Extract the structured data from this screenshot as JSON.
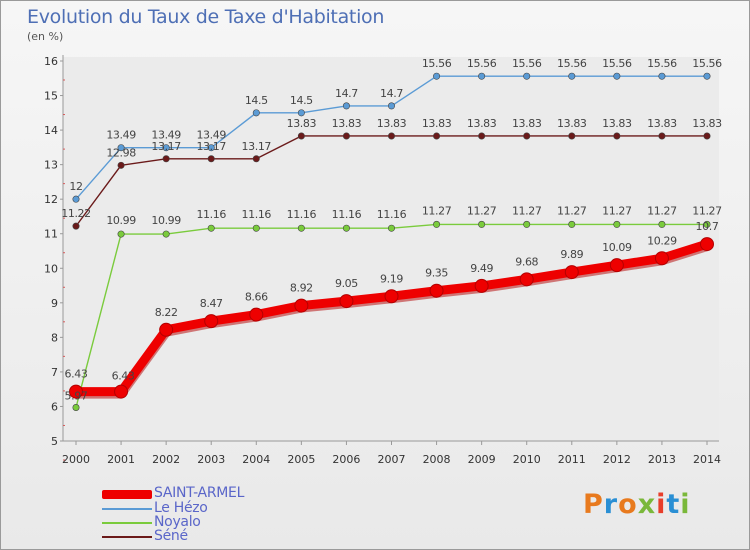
{
  "header": {
    "title": "Evolution du Taux de Taxe d'Habitation",
    "unit": "(en %)"
  },
  "logo": {
    "text": "Proxiti",
    "colors": [
      "#e87a1e",
      "#2a8fd4",
      "#e87a1e",
      "#7ab83a",
      "#e83e2a",
      "#2a8fd4",
      "#7ab83a"
    ]
  },
  "chart_data": {
    "type": "line",
    "x": [
      "2000",
      "2001",
      "2002",
      "2003",
      "2004",
      "2005",
      "2006",
      "2007",
      "2008",
      "2009",
      "2010",
      "2011",
      "2012",
      "2013",
      "2014"
    ],
    "ylim": [
      5,
      16
    ],
    "yticks": [
      5,
      6,
      7,
      8,
      9,
      10,
      11,
      12,
      13,
      14,
      15,
      16
    ],
    "grid": false,
    "legend_position": "bottom-left",
    "series": [
      {
        "name": "SAINT-ARMEL",
        "color": "#ee0000",
        "labels": [
          "6.43",
          "6.43",
          "8.22",
          "8.47",
          "8.66",
          "8.92",
          "9.05",
          "9.19",
          "9.35",
          "9.49",
          "9.68",
          "9.89",
          "10.09",
          "10.29",
          "10.7"
        ],
        "values": [
          6.43,
          6.43,
          8.22,
          8.47,
          8.66,
          8.92,
          9.05,
          9.19,
          9.35,
          9.49,
          9.68,
          9.89,
          10.09,
          10.29,
          10.7
        ]
      },
      {
        "name": "Le Hézo",
        "color": "#5b9bd5",
        "labels": [
          "12",
          "13.49",
          "13.49",
          "13.49",
          "14.5",
          "14.5",
          "14.7",
          "14.7",
          "15.56",
          "15.56",
          "15.56",
          "15.56",
          "15.56",
          "15.56",
          "15.56"
        ],
        "values": [
          12,
          13.49,
          13.49,
          13.49,
          14.5,
          14.5,
          14.7,
          14.7,
          15.56,
          15.56,
          15.56,
          15.56,
          15.56,
          15.56,
          15.56
        ]
      },
      {
        "name": "Noyalo",
        "color": "#7acb3c",
        "labels": [
          "5.97",
          "10.99",
          "10.99",
          "11.16",
          "11.16",
          "11.16",
          "11.16",
          "11.16",
          "11.27",
          "11.27",
          "11.27",
          "11.27",
          "11.27",
          "11.27",
          "11.27"
        ],
        "values": [
          5.97,
          10.99,
          10.99,
          11.16,
          11.16,
          11.16,
          11.16,
          11.16,
          11.27,
          11.27,
          11.27,
          11.27,
          11.27,
          11.27,
          11.27
        ]
      },
      {
        "name": "Séné",
        "color": "#6b1a1a",
        "labels": [
          "11.22",
          "12.98",
          "13.17",
          "13.17",
          "13.17",
          "13.83",
          "13.83",
          "13.83",
          "13.83",
          "13.83",
          "13.83",
          "13.83",
          "13.83",
          "13.83",
          "13.83"
        ],
        "values": [
          11.22,
          12.98,
          13.17,
          13.17,
          13.17,
          13.83,
          13.83,
          13.83,
          13.83,
          13.83,
          13.83,
          13.83,
          13.83,
          13.83,
          13.83
        ]
      }
    ]
  }
}
